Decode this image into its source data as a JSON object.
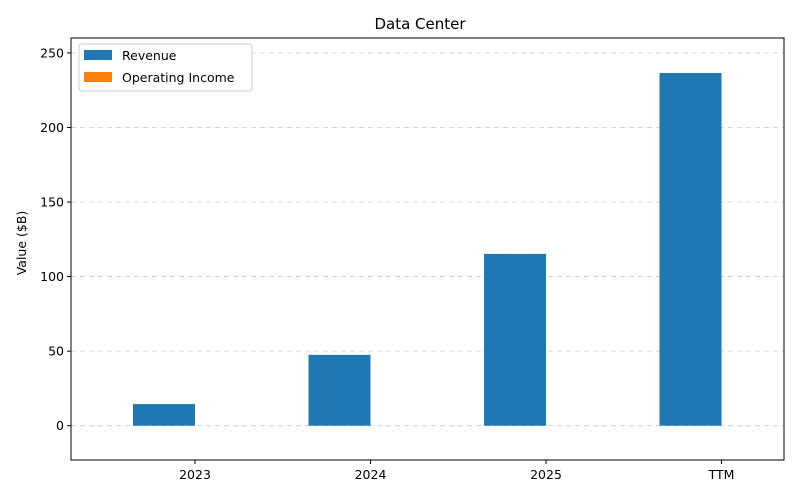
{
  "chart_data": {
    "type": "bar",
    "title": "Data Center",
    "xlabel": "",
    "ylabel": "Value ($B)",
    "categories": [
      "2023",
      "2024",
      "2025",
      "TTM"
    ],
    "series": [
      {
        "name": "Revenue",
        "color": "#1f77b4",
        "values": [
          14.5,
          47.5,
          115.2,
          236.5
        ]
      },
      {
        "name": "Operating Income",
        "color": "#ff7f0e",
        "values": [
          0,
          0,
          0,
          0
        ]
      }
    ],
    "ylim": [
      -23,
      260
    ],
    "yticks": [
      0,
      50,
      100,
      150,
      200,
      250
    ],
    "grid": true,
    "legend_position": "top-left"
  }
}
